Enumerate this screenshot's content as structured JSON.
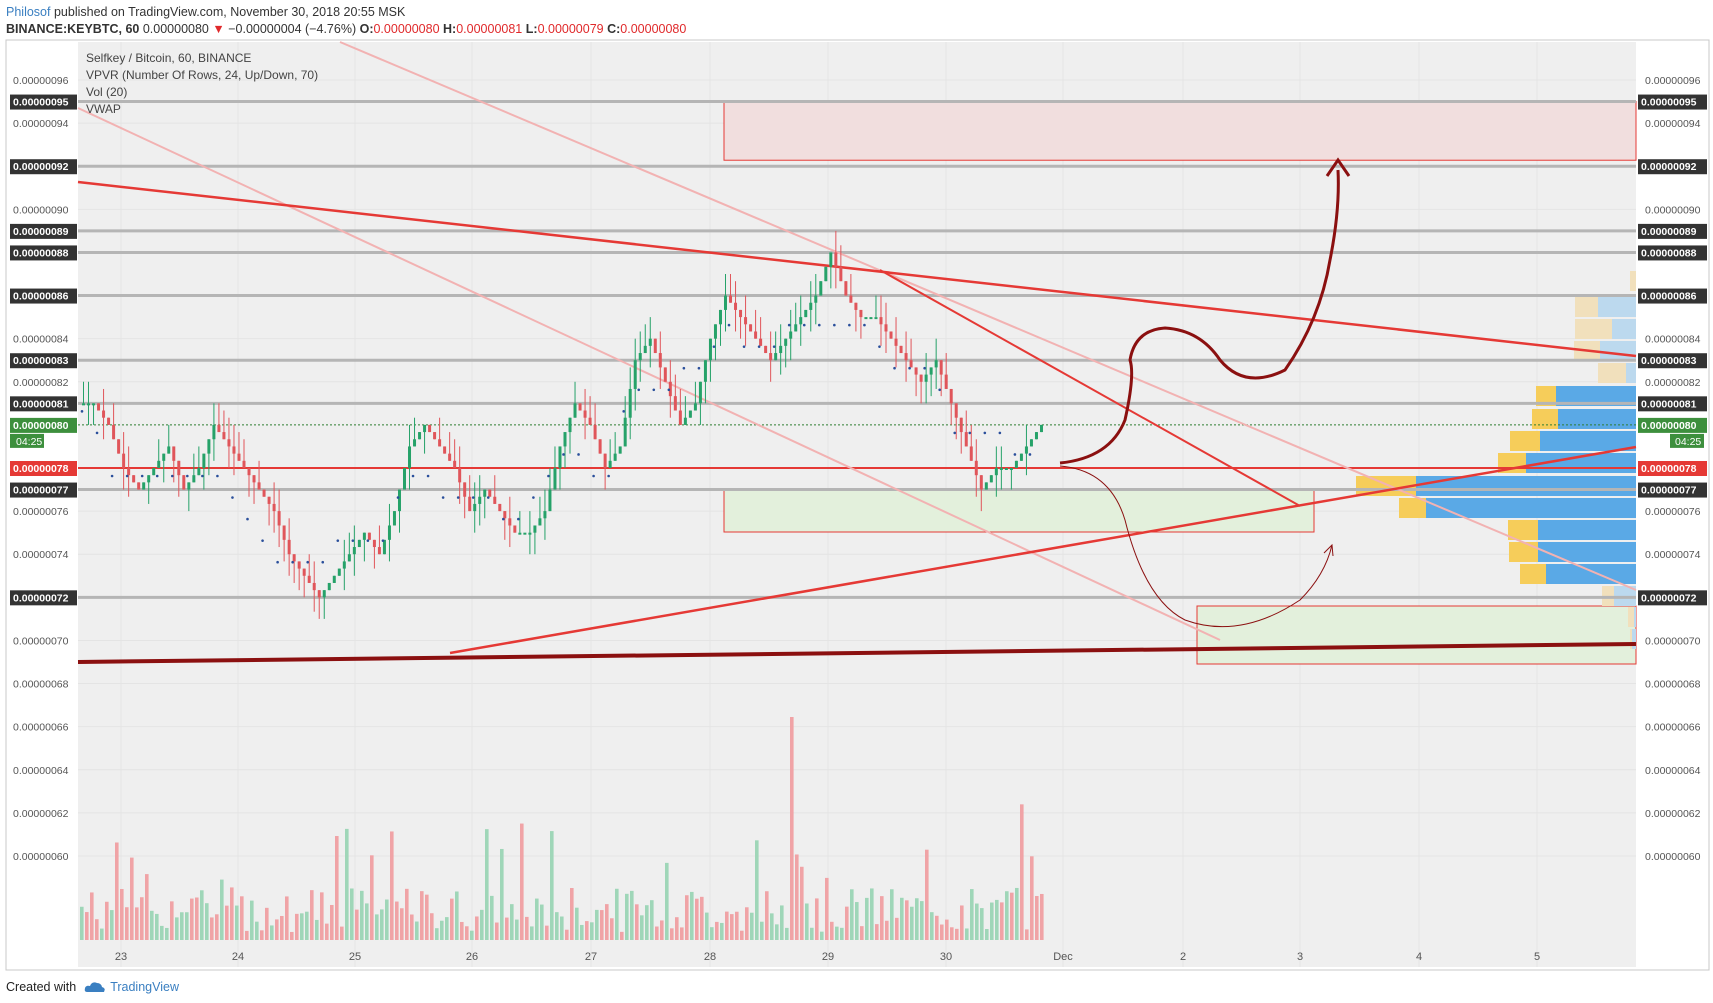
{
  "header": {
    "author": "Philosof",
    "published": " published on TradingView.com, November 30, 2018 20:55 MSK",
    "symbol": "BINANCE:KEYBTC, 60",
    "last": "0.00000080",
    "change": "▼",
    "change_text": " −0.00000004 (−4.76%)",
    "o_label": "O:",
    "o": "0.00000080",
    "h_label": "H:",
    "h": "0.00000081",
    "l_label": "L:",
    "l": "0.00000079",
    "c_label": "C:",
    "c": "0.00000080"
  },
  "legend": {
    "title": "Selfkey / Bitcoin, 60, BINANCE",
    "vpvr": "VPVR (Number Of Rows, 24, Up/Down, 70)",
    "vol": "Vol (20)",
    "vwap": "VWAP"
  },
  "footer": {
    "created": "Created with",
    "brand": "TradingView"
  },
  "colors": {
    "up": "#26a269",
    "down": "#e0555a",
    "vol_up": "#9fd6b8",
    "vol_down": "#f0a3a6",
    "trend": "#e53935",
    "trend_light": "#f2b2b2",
    "dark_red": "#8b1010",
    "gray_line": "#b5b5b5",
    "vpvr_up": "#5aa9e6",
    "vpvr_down": "#f6cd5a",
    "vpvr_up_light": "#bcd9ee",
    "vpvr_down_light": "#f1e0bc"
  },
  "chart_data": {
    "type": "candlestick",
    "x_ticks": [
      "23",
      "24",
      "25",
      "26",
      "27",
      "28",
      "29",
      "30",
      "Dec",
      "2",
      "3",
      "4",
      "5"
    ],
    "y_ticks": [
      "0.00000096",
      "0.00000094",
      "0.00000090",
      "0.00000084",
      "0.00000082",
      "0.00000076",
      "0.00000074",
      "0.00000070",
      "0.00000068",
      "0.00000066",
      "0.00000064",
      "0.00000062",
      "0.00000060"
    ],
    "y_range": [
      6e-07,
      9.6e-07
    ],
    "level_labels": [
      "0.00000095",
      "0.00000092",
      "0.00000089",
      "0.00000088",
      "0.00000086",
      "0.00000083",
      "0.00000081",
      "0.00000077",
      "0.00000072"
    ],
    "current_price": "0.00000080",
    "countdown": "04:25",
    "highlight_price": "0.00000078",
    "ohlc_path": [
      8.1e-07,
      8e-07,
      7.8e-07,
      7.7e-07,
      7.8e-07,
      7.9e-07,
      7.7e-07,
      7.8e-07,
      8e-07,
      7.9e-07,
      7.8e-07,
      7.7e-07,
      7.6e-07,
      7.4e-07,
      7.3e-07,
      7.2e-07,
      7.3e-07,
      7.4e-07,
      7.5e-07,
      7.4e-07,
      7.6e-07,
      7.9e-07,
      8e-07,
      7.9e-07,
      7.8e-07,
      7.6e-07,
      7.7e-07,
      7.6e-07,
      7.5e-07,
      7.5e-07,
      7.6e-07,
      7.9e-07,
      8.1e-07,
      8e-07,
      7.8e-07,
      7.9e-07,
      8.3e-07,
      8.4e-07,
      8.2e-07,
      8e-07,
      8.1e-07,
      8.4e-07,
      8.6e-07,
      8.5e-07,
      8.4e-07,
      8.3e-07,
      8.4e-07,
      8.5e-07,
      8.6e-07,
      8.8e-07,
      8.6e-07,
      8.5e-07,
      8.5e-07,
      8.4e-07,
      8.3e-07,
      8.2e-07,
      8.3e-07,
      8.1e-07,
      7.9e-07,
      7.7e-07,
      7.8e-07,
      7.8e-07,
      7.9e-07,
      8e-07
    ],
    "vwap_path": [
      8.1e-07,
      8e-07,
      7.8e-07,
      7.8e-07,
      7.8e-07,
      7.8e-07,
      7.8e-07,
      7.8e-07,
      7.8e-07,
      7.8e-07,
      7.7e-07,
      7.6e-07,
      7.5e-07,
      7.4e-07,
      7.4e-07,
      7.4e-07,
      7.4e-07,
      7.5e-07,
      7.5e-07,
      7.5e-07,
      7.5e-07,
      7.7e-07,
      7.8e-07,
      7.8e-07,
      7.7e-07,
      7.7e-07,
      7.7e-07,
      7.7e-07,
      7.6e-07,
      7.6e-07,
      7.7e-07,
      7.8e-07,
      7.9e-07,
      7.9e-07,
      7.8e-07,
      7.8e-07,
      8.1e-07,
      8.2e-07,
      8.2e-07,
      8.2e-07,
      8.3e-07,
      8.3e-07,
      8.4e-07,
      8.5e-07,
      8.4e-07,
      8.4e-07,
      8.4e-07,
      8.5e-07,
      8.5e-07,
      8.5e-07,
      8.5e-07,
      8.5e-07,
      8.5e-07,
      8.4e-07,
      8.3e-07,
      8.3e-07,
      8.3e-07,
      8.2e-07,
      8e-07,
      8e-07,
      8e-07,
      8e-07,
      7.9e-07,
      7.9e-07
    ]
  }
}
